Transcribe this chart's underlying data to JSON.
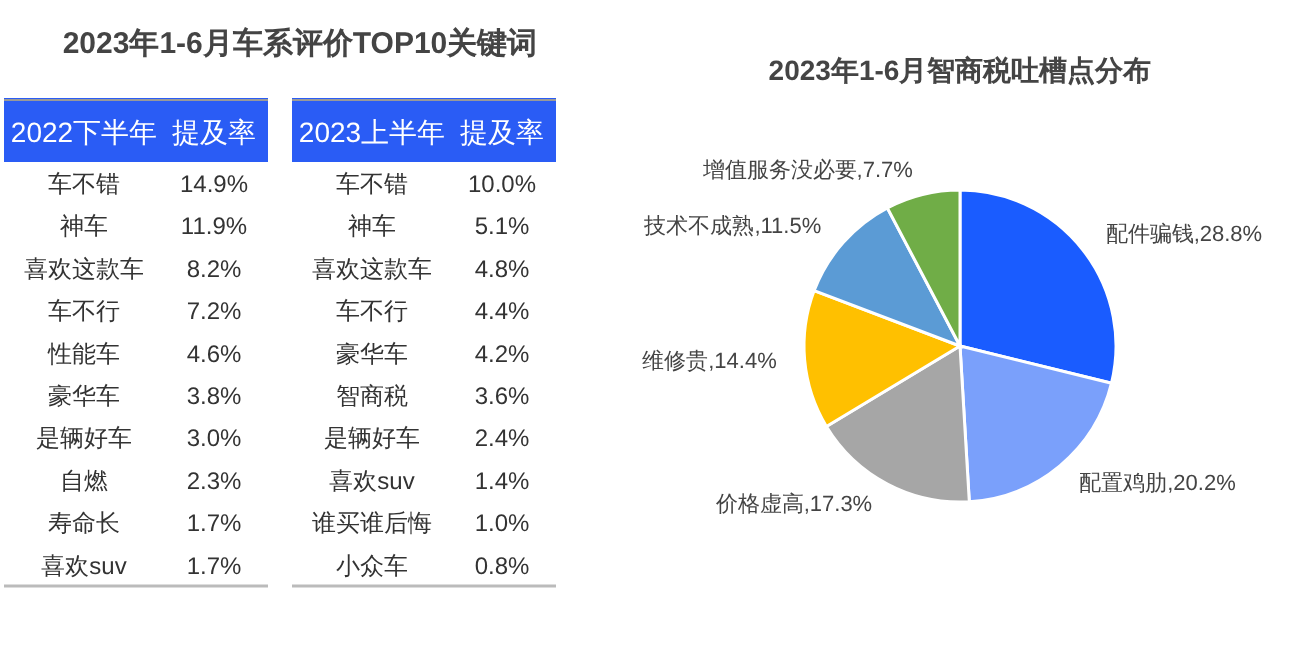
{
  "chart_data": [
    {
      "type": "other",
      "title": "2023年1-6月车系评价TOP10关键词",
      "xlabel": "2022下半年",
      "ylabel": "提及率",
      "categories": [
        "车不错",
        "神车",
        "喜欢这款车",
        "车不行",
        "性能车",
        "豪华车",
        "是辆好车",
        "自燃",
        "寿命长",
        "喜欢suv"
      ],
      "value_labels": [
        "14.9%",
        "11.9%",
        "8.2%",
        "7.2%",
        "4.6%",
        "3.8%",
        "3.0%",
        "2.3%",
        "1.7%",
        "1.7%"
      ],
      "color": "#2a5cf5"
    },
    {
      "type": "other",
      "xlabel": "2023上半年",
      "ylabel": "提及率",
      "categories": [
        "车不错",
        "神车",
        "喜欢这款车",
        "车不行",
        "豪华车",
        "智商税",
        "是辆好车",
        "喜欢suv",
        "谁买谁后悔",
        "小众车"
      ],
      "value_labels": [
        "10.0%",
        "5.1%",
        "4.8%",
        "4.4%",
        "4.2%",
        "3.6%",
        "2.4%",
        "1.4%",
        "1.0%",
        "0.8%"
      ],
      "color": "#2a5cf5"
    },
    {
      "type": "pie",
      "title": "2023年1-6月智商税吐槽点分布",
      "categories": [
        "配件骗钱",
        "配置鸡肋",
        "价格虚高",
        "维修贵",
        "技术不成熟",
        "增值服务没必要"
      ],
      "values": [
        28.8,
        20.2,
        17.3,
        14.4,
        11.5,
        7.7
      ],
      "value_labels": [
        "28.8%",
        "20.2%",
        "17.3%",
        "14.4%",
        "11.5%",
        "7.7%"
      ],
      "colors": [
        "#1a5cff",
        "#7aa0fb",
        "#a6a6a6",
        "#ffc000",
        "#5b9bd5",
        "#70ad47"
      ]
    }
  ]
}
